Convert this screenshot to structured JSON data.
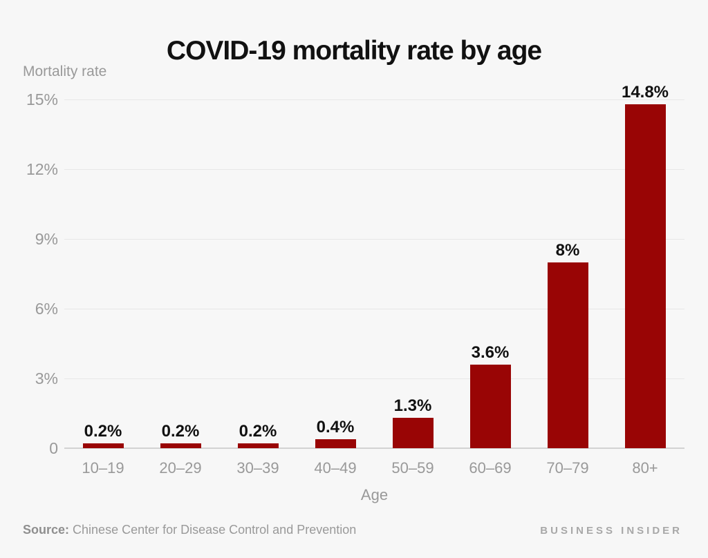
{
  "page": {
    "background_color": "#f7f7f7"
  },
  "chart_data": {
    "type": "bar",
    "title": "COVID-19 mortality rate by age",
    "xlabel": "Age",
    "ylabel": "Mortality rate",
    "categories": [
      "10–19",
      "20–29",
      "30–39",
      "40–49",
      "50–59",
      "60–69",
      "70–79",
      "80+"
    ],
    "values": [
      0.2,
      0.2,
      0.2,
      0.4,
      1.3,
      3.6,
      8,
      14.8
    ],
    "bar_labels": [
      "0.2%",
      "0.2%",
      "0.2%",
      "0.4%",
      "1.3%",
      "3.6%",
      "8%",
      "14.8%"
    ],
    "y_ticks": [
      {
        "value": 0,
        "label": "0"
      },
      {
        "value": 3,
        "label": "3%"
      },
      {
        "value": 6,
        "label": "6%"
      },
      {
        "value": 9,
        "label": "9%"
      },
      {
        "value": 12,
        "label": "12%"
      },
      {
        "value": 15,
        "label": "15%"
      }
    ],
    "ylim": [
      0,
      15
    ],
    "grid": "horizontal",
    "legend_position": "none",
    "bar_color": "#990505"
  },
  "footer": {
    "source_prefix": "Source:",
    "source_text": " Chinese Center for Disease Control and Prevention",
    "brand": "BUSINESS INSIDER"
  }
}
